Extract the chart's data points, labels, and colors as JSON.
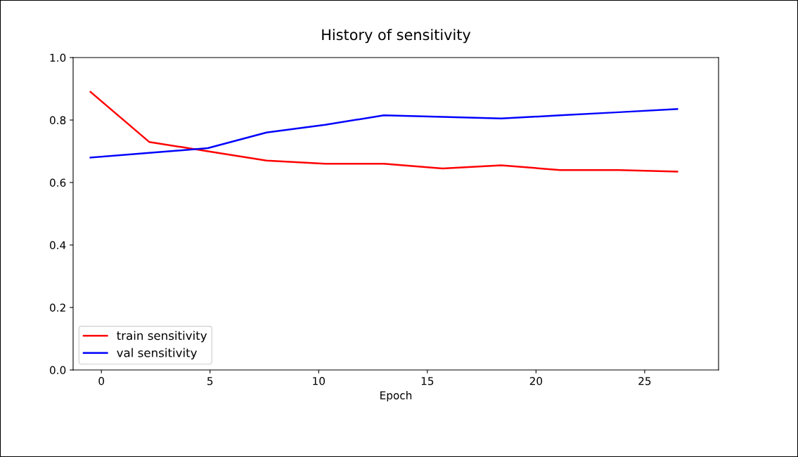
{
  "chart_data": {
    "type": "line",
    "title": "History of sensitivity",
    "xlabel": "Epoch",
    "x": [
      -0.5,
      2.2,
      4.9,
      7.6,
      10.3,
      13.0,
      15.7,
      18.4,
      21.1,
      23.8,
      26.5
    ],
    "series": [
      {
        "name": "train sensitivity",
        "color": "#ff0000",
        "values": [
          0.89,
          0.73,
          0.7,
          0.67,
          0.66,
          0.66,
          0.645,
          0.655,
          0.64,
          0.64,
          0.635
        ]
      },
      {
        "name": "val sensitivity",
        "color": "#0000ff",
        "values": [
          0.68,
          0.695,
          0.71,
          0.76,
          0.785,
          0.815,
          0.81,
          0.805,
          0.815,
          0.825,
          0.835
        ]
      }
    ],
    "xlim": [
      -1.3,
      28.4
    ],
    "xticks": [
      0,
      5,
      10,
      15,
      20,
      25
    ],
    "ylim": [
      0,
      1
    ],
    "yticks": [
      {
        "value": 0,
        "label": "0.0"
      },
      0.2,
      0.4,
      0.6,
      0.8,
      {
        "value": 1,
        "label": "1.0"
      }
    ],
    "grid": false,
    "legend": "bottom left",
    "marker": "none",
    "line_style": "solid"
  }
}
